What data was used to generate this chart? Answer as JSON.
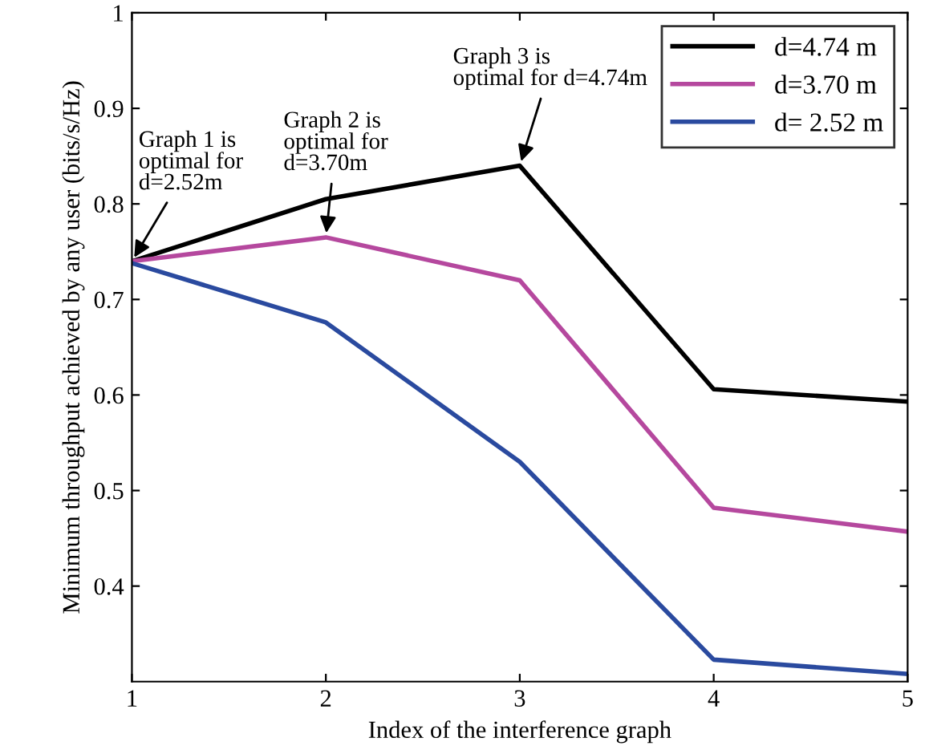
{
  "chart_data": {
    "type": "line",
    "xlabel": "Index of the interference graph",
    "ylabel": "Minimum throughput achieved by any user (bits/s/Hz)",
    "x": [
      1,
      2,
      3,
      4,
      5
    ],
    "series": [
      {
        "name": "d=4.74 m",
        "color": "#000000",
        "values": [
          0.74,
          0.805,
          0.84,
          0.606,
          0.593
        ]
      },
      {
        "name": "d=3.70 m",
        "color": "#b5489e",
        "values": [
          0.74,
          0.765,
          0.72,
          0.482,
          0.457
        ]
      },
      {
        "name": "d= 2.52 m",
        "color": "#2a4a9f",
        "values": [
          0.738,
          0.676,
          0.53,
          0.323,
          0.308
        ]
      }
    ],
    "xlim": [
      1,
      5
    ],
    "ylim": [
      0.3,
      1
    ],
    "xticks": [
      1,
      2,
      3,
      4,
      5
    ],
    "yticks": [
      0.4,
      0.5,
      0.6,
      0.7,
      0.8,
      0.9,
      1
    ],
    "annotations": [
      {
        "text": "Graph 1 is\noptimal for\nd=2.52m",
        "x": 1,
        "y": 0.74
      },
      {
        "text": "Graph 2 is\noptimal for\nd=3.70m",
        "x": 2,
        "y": 0.765
      },
      {
        "text": "Graph 3 is\noptimal for d=4.74m",
        "x": 3,
        "y": 0.84
      }
    ],
    "grid": false,
    "legend": "top right",
    "marker": "none",
    "line_style": "solid"
  }
}
